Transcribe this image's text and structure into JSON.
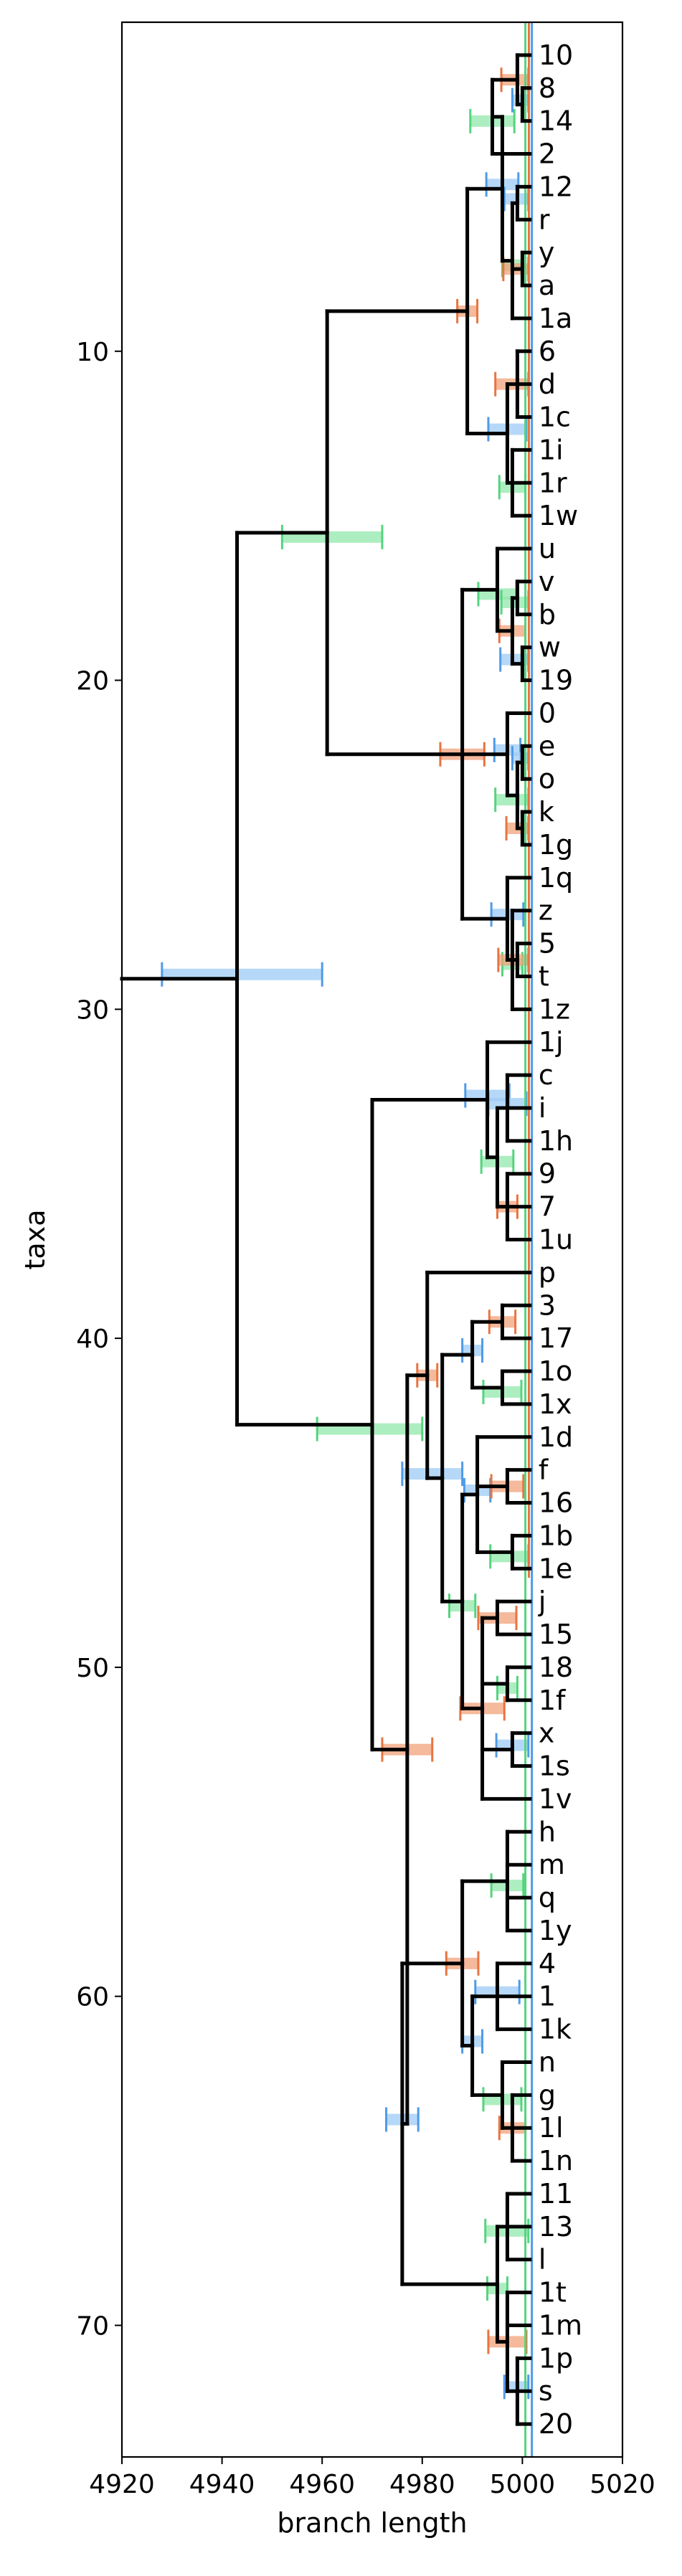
{
  "chart_data": {
    "type": "tree",
    "xlabel": "branch length",
    "ylabel": "taxa",
    "xlim": [
      4920,
      5020
    ],
    "ylim": [
      74,
      0
    ],
    "xticks": [
      4920,
      4940,
      4960,
      4980,
      5000,
      5020
    ],
    "yticks": [
      10,
      20,
      30,
      40,
      50,
      60,
      70
    ],
    "error_colors": [
      "#9ecbf6",
      "#f2a27a",
      "#91e8ab"
    ],
    "bar_colors": [
      "#4f9ae8",
      "#e8743f",
      "#54d47e"
    ],
    "leaves": [
      "10",
      "8",
      "14",
      "2",
      "12",
      "r",
      "y",
      "a",
      "1a",
      "6",
      "d",
      "1c",
      "1i",
      "1r",
      "1w",
      "u",
      "v",
      "b",
      "w",
      "19",
      "0",
      "e",
      "o",
      "k",
      "1g",
      "1q",
      "z",
      "5",
      "t",
      "1z",
      "1j",
      "c",
      "i",
      "1h",
      "9",
      "7",
      "1u",
      "p",
      "3",
      "17",
      "1o",
      "1x",
      "1d",
      "f",
      "16",
      "1b",
      "1e",
      "j",
      "15",
      "18",
      "1f",
      "x",
      "1s",
      "1v",
      "h",
      "m",
      "q",
      "1y",
      "4",
      "1",
      "1k",
      "n",
      "g",
      "1l",
      "1n",
      "11",
      "13",
      "l",
      "1t",
      "1m",
      "1p",
      "s",
      "20"
    ],
    "leaf_x": 5001.5,
    "root": {
      "x": 4943,
      "sx": 4944,
      "err": [
        4928,
        4960
      ],
      "children": [
        {
          "x": 4961,
          "err": [
            4952,
            4972
          ],
          "children": [
            {
              "x": 4989,
              "children": [
                {
                  "x": 4996,
                  "children": [
                    {
                      "x": 4994,
                      "children": [
                        {
                          "x": 4999,
                          "children": [
                            {
                              "leaf": 0
                            },
                            {
                              "x": 5000,
                              "children": [
                                {
                                  "leaf": 1
                                },
                                {
                                  "leaf": 2
                                }
                              ]
                            }
                          ]
                        },
                        {
                          "leaf": 3
                        }
                      ]
                    },
                    {
                      "x": 4998,
                      "children": [
                        {
                          "x": 4999,
                          "children": [
                            {
                              "leaf": 4
                            },
                            {
                              "leaf": 5
                            }
                          ]
                        },
                        {
                          "x": 5000,
                          "children": [
                            {
                              "leaf": 6
                            },
                            {
                              "leaf": 7
                            }
                          ]
                        },
                        {
                          "leaf": 8
                        }
                      ]
                    }
                  ]
                },
                {
                  "x": 4997,
                  "children": [
                    {
                      "x": 4999,
                      "children": [
                        {
                          "leaf": 9
                        },
                        {
                          "leaf": 10
                        },
                        {
                          "leaf": 11
                        }
                      ]
                    },
                    {
                      "x": 4998,
                      "children": [
                        {
                          "leaf": 12
                        },
                        {
                          "leaf": 13
                        },
                        {
                          "leaf": 14
                        }
                      ]
                    }
                  ]
                }
              ]
            },
            {
              "x": 4988,
              "children": [
                {
                  "x": 4995,
                  "children": [
                    {
                      "leaf": 15
                    },
                    {
                      "x": 4998,
                      "children": [
                        {
                          "x": 4999,
                          "children": [
                            {
                              "leaf": 16
                            },
                            {
                              "leaf": 17
                            }
                          ]
                        },
                        {
                          "x": 5000,
                          "children": [
                            {
                              "leaf": 18
                            },
                            {
                              "leaf": 19
                            }
                          ]
                        }
                      ]
                    }
                  ]
                },
                {
                  "x": 4997,
                  "children": [
                    {
                      "leaf": 20
                    },
                    {
                      "x": 4999,
                      "children": [
                        {
                          "x": 5000,
                          "children": [
                            {
                              "leaf": 21
                            },
                            {
                              "leaf": 22
                            }
                          ]
                        },
                        {
                          "x": 5000,
                          "children": [
                            {
                              "leaf": 23
                            },
                            {
                              "leaf": 24
                            }
                          ]
                        }
                      ]
                    }
                  ]
                },
                {
                  "x": 4997,
                  "children": [
                    {
                      "leaf": 25
                    },
                    {
                      "x": 4998,
                      "children": [
                        {
                          "leaf": 26
                        },
                        {
                          "x": 4999,
                          "children": [
                            {
                              "leaf": 27
                            },
                            {
                              "leaf": 28
                            }
                          ]
                        },
                        {
                          "leaf": 29
                        }
                      ]
                    }
                  ]
                }
              ]
            }
          ]
        },
        {
          "x": 4970,
          "sx": 4969,
          "err": [
            4959,
            4980
          ],
          "children": [
            {
              "x": 4993,
              "children": [
                {
                  "leaf": 30
                },
                {
                  "x": 4995,
                  "children": [
                    {
                      "x": 4997,
                      "children": [
                        {
                          "leaf": 31
                        },
                        {
                          "leaf": 32
                        },
                        {
                          "leaf": 33
                        }
                      ]
                    },
                    {
                      "x": 4997,
                      "children": [
                        {
                          "leaf": 34
                        },
                        {
                          "leaf": 35
                        },
                        {
                          "leaf": 36
                        }
                      ]
                    }
                  ]
                }
              ]
            },
            {
              "x": 4977,
              "err": [
                4972,
                4982
              ],
              "children": [
                {
                  "x": 4981,
                  "children": [
                    {
                      "leaf": 37
                    },
                    {
                      "x": 4984,
                      "err": [
                        4976,
                        4988
                      ],
                      "children": [
                        {
                          "x": 4990,
                          "children": [
                            {
                              "x": 4996,
                              "children": [
                                {
                                  "leaf": 38
                                },
                                {
                                  "leaf": 39
                                }
                              ]
                            },
                            {
                              "x": 4996,
                              "children": [
                                {
                                  "leaf": 40
                                },
                                {
                                  "leaf": 41
                                }
                              ]
                            }
                          ]
                        },
                        {
                          "x": 4988,
                          "children": [
                            {
                              "x": 4991,
                              "children": [
                                {
                                  "leaf": 42
                                },
                                {
                                  "x": 4997,
                                  "children": [
                                    {
                                      "leaf": 43
                                    },
                                    {
                                      "leaf": 44
                                    }
                                  ]
                                },
                                {
                                  "x": 4998,
                                  "children": [
                                    {
                                      "leaf": 45
                                    },
                                    {
                                      "leaf": 46
                                    }
                                  ]
                                }
                              ]
                            },
                            {
                              "x": 4992,
                              "children": [
                                {
                                  "x": 4995,
                                  "children": [
                                    {
                                      "leaf": 47
                                    },
                                    {
                                      "leaf": 48
                                    }
                                  ]
                                },
                                {
                                  "x": 4997,
                                  "children": [
                                    {
                                      "leaf": 49
                                    },
                                    {
                                      "leaf": 50
                                    }
                                  ]
                                },
                                {
                                  "x": 4998,
                                  "children": [
                                    {
                                      "leaf": 51
                                    },
                                    {
                                      "leaf": 52
                                    }
                                  ]
                                },
                                {
                                  "leaf": 53
                                }
                              ]
                            }
                          ]
                        }
                      ]
                    }
                  ]
                },
                {
                  "x": 4976,
                  "children": [
                    {
                      "x": 4988,
                      "children": [
                        {
                          "x": 4997,
                          "children": [
                            {
                              "leaf": 54
                            },
                            {
                              "leaf": 55
                            },
                            {
                              "leaf": 56
                            },
                            {
                              "leaf": 57
                            }
                          ]
                        },
                        {
                          "x": 4990,
                          "children": [
                            {
                              "x": 4995,
                              "children": [
                                {
                                  "leaf": 58
                                },
                                {
                                  "leaf": 59
                                },
                                {
                                  "leaf": 60
                                }
                              ]
                            },
                            {
                              "x": 4996,
                              "children": [
                                {
                                  "leaf": 61
                                },
                                {
                                  "x": 4998,
                                  "children": [
                                    {
                                      "leaf": 62
                                    },
                                    {
                                      "leaf": 63
                                    },
                                    {
                                      "leaf": 64
                                    }
                                  ]
                                }
                              ]
                            }
                          ]
                        }
                      ]
                    },
                    {
                      "x": 4995,
                      "children": [
                        {
                          "x": 4997,
                          "children": [
                            {
                              "leaf": 65
                            },
                            {
                              "leaf": 66
                            },
                            {
                              "leaf": 67
                            }
                          ]
                        },
                        {
                          "x": 4997,
                          "children": [
                            {
                              "leaf": 68
                            },
                            {
                              "leaf": 69
                            },
                            {
                              "x": 4999,
                              "children": [
                                {
                                  "leaf": 70
                                },
                                {
                                  "leaf": 71
                                },
                                {
                                  "leaf": 72
                                }
                              ]
                            }
                          ]
                        }
                      ]
                    }
                  ]
                }
              ]
            }
          ]
        }
      ]
    }
  }
}
